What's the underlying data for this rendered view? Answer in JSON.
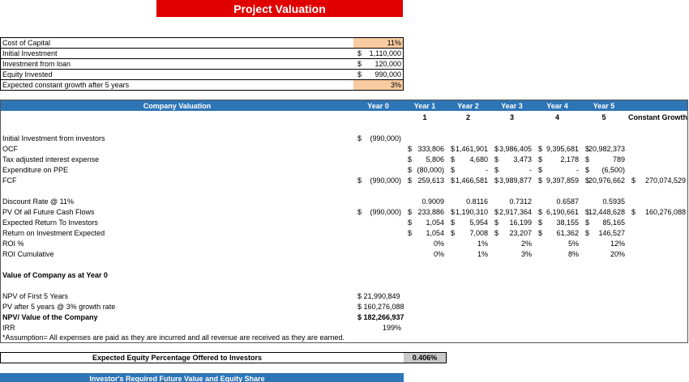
{
  "title": "Project Valuation",
  "inputs": [
    {
      "label": "Cost of Capital",
      "value": "11%"
    },
    {
      "label": "Initial Investment",
      "value": [
        "$",
        "1,110,000"
      ]
    },
    {
      "label": "Investment from loan",
      "value": [
        "$",
        "120,000"
      ]
    },
    {
      "label": "Equity Invested",
      "value": [
        "$",
        "990,000"
      ]
    },
    {
      "label": "Expected constant growth after 5 years",
      "value": "3%"
    }
  ],
  "valuation": {
    "title": "Company Valuation",
    "years": [
      "Year 0",
      "Year 1",
      "Year 2",
      "Year 3",
      "Year 4",
      "Year 5"
    ],
    "numbers": [
      "1",
      "2",
      "3",
      "4",
      "5"
    ],
    "constant_growth": "Constant Growth",
    "rows": [
      {
        "label": "Initial Investment from investors",
        "cells": [
          [
            "$",
            "(990,000)"
          ],
          null,
          null,
          null,
          null,
          null,
          null
        ]
      },
      {
        "label": "OCF",
        "cells": [
          null,
          [
            "$",
            "333,806"
          ],
          [
            "$",
            "1,461,901"
          ],
          [
            "$",
            "3,986,405"
          ],
          [
            "$",
            "9,395,681"
          ],
          [
            "$",
            "20,982,373"
          ],
          null
        ]
      },
      {
        "label": "Tax adjusted interest expense",
        "cells": [
          null,
          [
            "$",
            "5,806"
          ],
          [
            "$",
            "4,680"
          ],
          [
            "$",
            "3,473"
          ],
          [
            "$",
            "2,178"
          ],
          [
            "$",
            "789"
          ],
          null
        ]
      },
      {
        "label": "Expenditure on PPE",
        "cells": [
          null,
          [
            "$",
            "(80,000)"
          ],
          [
            "$",
            "-"
          ],
          [
            "$",
            "-"
          ],
          [
            "$",
            "-"
          ],
          [
            "$",
            "(6,500)"
          ],
          null
        ]
      },
      {
        "label": "FCF",
        "cells": [
          [
            "$",
            "(990,000)"
          ],
          [
            "$",
            "259,613"
          ],
          [
            "$",
            "1,466,581"
          ],
          [
            "$",
            "3,989,877"
          ],
          [
            "$",
            "9,397,859"
          ],
          [
            "$",
            "20,976,662"
          ],
          [
            "$",
            "270,074,529"
          ]
        ]
      },
      {
        "label": "Discount Rate @ 11%",
        "cells": [
          null,
          "0.9009",
          "0.8116",
          "0.7312",
          "0.6587",
          "0.5935",
          null
        ]
      },
      {
        "label": "PV Of all Future Cash Flows",
        "cells": [
          [
            "$",
            "(990,000)"
          ],
          [
            "$",
            "233,886"
          ],
          [
            "$",
            "1,190,310"
          ],
          [
            "$",
            "2,917,364"
          ],
          [
            "$",
            "6,190,661"
          ],
          [
            "$",
            "12,448,628"
          ],
          [
            "$",
            "160,276,088"
          ]
        ]
      },
      {
        "label": "Expected Return To Investors",
        "cells": [
          null,
          [
            "$",
            "1,054"
          ],
          [
            "$",
            "5,954"
          ],
          [
            "$",
            "16,199"
          ],
          [
            "$",
            "38,155"
          ],
          [
            "$",
            "85,165"
          ],
          null
        ]
      },
      {
        "label": "Return on Investment Expected",
        "cells": [
          null,
          [
            "$",
            "1,054"
          ],
          [
            "$",
            "7,008"
          ],
          [
            "$",
            "23,207"
          ],
          [
            "$",
            "61,362"
          ],
          [
            "$",
            "146,527"
          ],
          null
        ]
      },
      {
        "label": "ROI %",
        "cells": [
          null,
          "0%",
          "1%",
          "2%",
          "5%",
          "12%",
          null
        ]
      },
      {
        "label": "ROI Cumulative",
        "cells": [
          null,
          "0%",
          "1%",
          "3%",
          "8%",
          "20%",
          null
        ]
      }
    ],
    "section": "Value of Company as at Year 0",
    "summary": [
      {
        "label": "NPV of First 5 Years",
        "value": "$ 21,990,849"
      },
      {
        "label": "PV after 5 years @ 3% growth rate",
        "value": "$ 160,276,088"
      },
      {
        "label": "NPV/ Value of the Company",
        "value": "$ 182,266,937"
      },
      {
        "label": "IRR",
        "value": "199%"
      }
    ],
    "note": "*Assumption= All expenses are paid as they are incurred and all revenue are received as they are earned."
  },
  "equity": {
    "label": "Expected Equity Percentage Offered to Investors",
    "value": "0.406%"
  },
  "next_section": "Investor's Required Future Value and Equity Share"
}
